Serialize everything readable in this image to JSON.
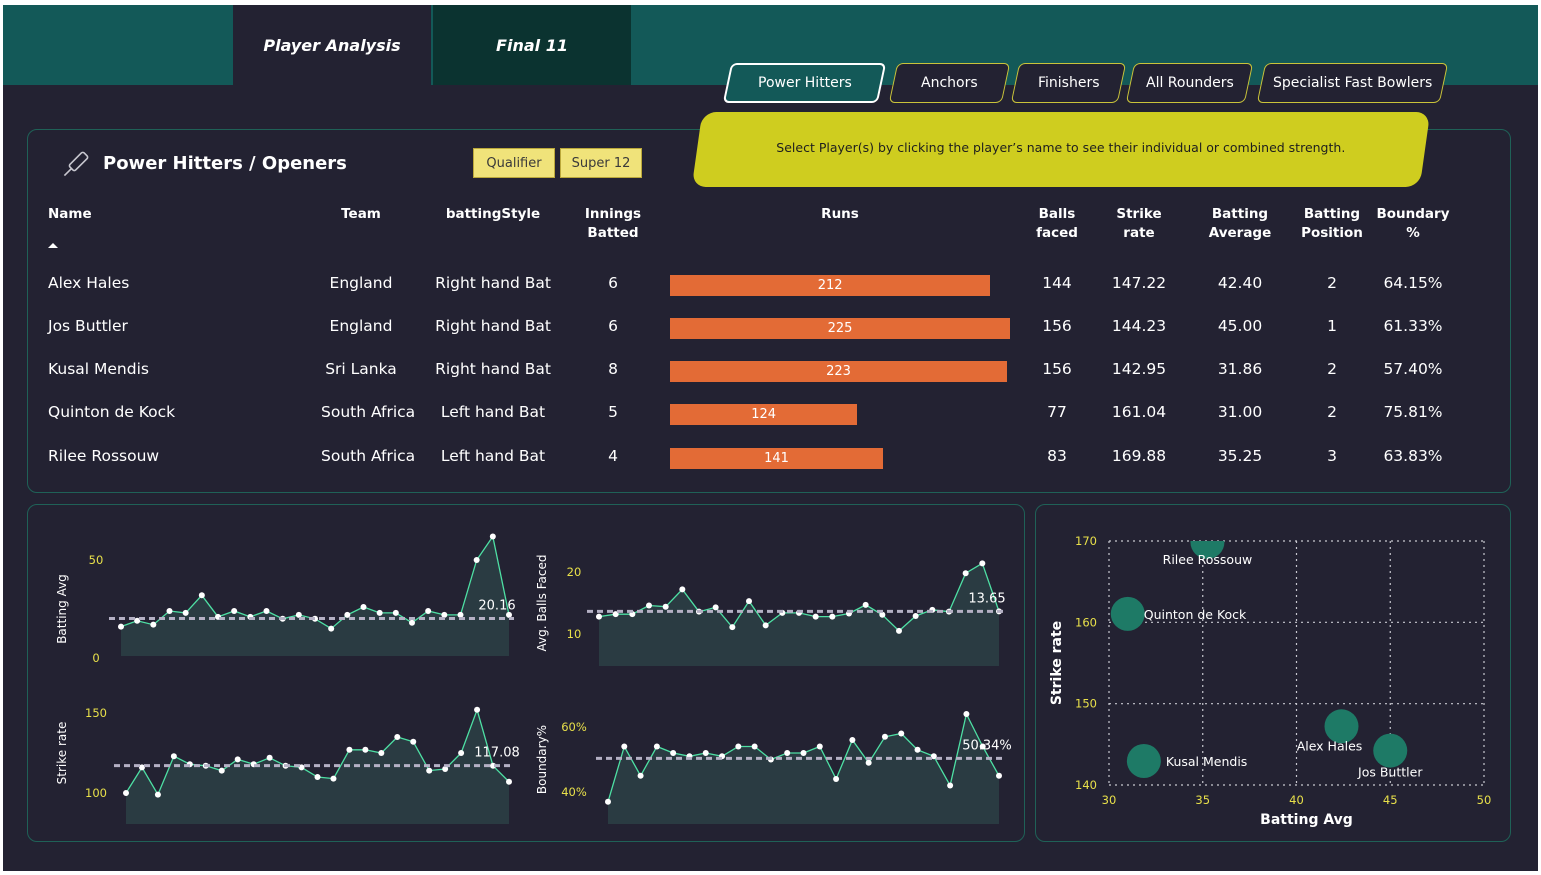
{
  "nav": {
    "tabs": [
      {
        "label": "Player Analysis",
        "active": true
      },
      {
        "label": "Final 11",
        "active": false
      }
    ]
  },
  "segments": [
    {
      "label": "Power Hitters",
      "active": true
    },
    {
      "label": "Anchors",
      "active": false
    },
    {
      "label": "Finishers",
      "active": false
    },
    {
      "label": "All Rounders",
      "active": false
    },
    {
      "label": "Specialist Fast Bowlers",
      "active": false
    }
  ],
  "banner": {
    "text": "Select Player(s) by clicking the player’s name to see their individual or combined strength."
  },
  "table": {
    "title": "Power Hitters / Openers",
    "icon": "cricket-bat-icon",
    "filters": [
      "Qualifier",
      "Super 12"
    ],
    "headers": {
      "name": "Name",
      "team": "Team",
      "style": "battingStyle",
      "innings": [
        "Innings",
        "Batted"
      ],
      "runs": "Runs",
      "balls": [
        "Balls",
        "faced"
      ],
      "sr": [
        "Strike",
        "rate"
      ],
      "avg": [
        "Batting",
        "Average"
      ],
      "pos": [
        "Batting",
        "Position"
      ],
      "boundary": "Boundary %"
    },
    "sort_icon": "sort-ascending-icon",
    "runs_max": 225,
    "rows": [
      {
        "name": "Alex Hales",
        "team": "England",
        "style": "Right hand Bat",
        "innings": "6",
        "runs": 212,
        "balls": "144",
        "sr": "147.22",
        "avg": "42.40",
        "pos": "2",
        "boundary": "64.15%"
      },
      {
        "name": "Jos Buttler",
        "team": "England",
        "style": "Right hand Bat",
        "innings": "6",
        "runs": 225,
        "balls": "156",
        "sr": "144.23",
        "avg": "45.00",
        "pos": "1",
        "boundary": "61.33%"
      },
      {
        "name": "Kusal Mendis",
        "team": "Sri Lanka",
        "style": "Right hand Bat",
        "innings": "8",
        "runs": 223,
        "balls": "156",
        "sr": "142.95",
        "avg": "31.86",
        "pos": "2",
        "boundary": "57.40%"
      },
      {
        "name": "Quinton de Kock",
        "team": "South Africa",
        "style": "Left hand Bat",
        "innings": "5",
        "runs": 124,
        "balls": "77",
        "sr": "161.04",
        "avg": "31.00",
        "pos": "2",
        "boundary": "75.81%"
      },
      {
        "name": "Rilee Rossouw",
        "team": "South Africa",
        "style": "Left hand Bat",
        "innings": "4",
        "runs": 141,
        "balls": "83",
        "sr": "169.88",
        "avg": "35.25",
        "pos": "3",
        "boundary": "63.83%"
      }
    ]
  },
  "colors": {
    "background": "#232232",
    "topbar": "#135958",
    "bar": "#e36b36",
    "banner": "#cfcd1f",
    "line": "#4ee0a4",
    "area": "#2a3b42",
    "bubble": "#1e7a66",
    "tick_yellow": "#e8e04a",
    "avg_line": "#b4b0c4"
  },
  "chart_data": [
    {
      "type": "line",
      "ylabel": "Batting Avg",
      "yticks": [
        "0",
        "50"
      ],
      "ylim": [
        0,
        50
      ],
      "values": [
        16,
        19,
        17,
        24,
        23,
        32,
        21,
        24,
        21,
        24,
        20,
        22,
        20,
        15,
        22,
        26,
        23,
        23,
        18,
        24,
        22,
        22,
        50,
        62,
        22
      ],
      "average": 20.16,
      "average_label": "20.16"
    },
    {
      "type": "line",
      "ylabel": "Avg. Balls Faced",
      "yticks": [
        "10",
        "20"
      ],
      "ylim": [
        10,
        20
      ],
      "values": [
        12.8,
        13.2,
        13.2,
        14.6,
        14.4,
        17.2,
        13.6,
        14.3,
        11.1,
        15.3,
        11.4,
        13.4,
        13.4,
        12.8,
        12.8,
        13.3,
        14.7,
        13.1,
        10.5,
        12.9,
        13.9,
        13.6,
        19.8,
        21.4,
        13.65
      ],
      "average": 13.65,
      "average_label": "13.65"
    },
    {
      "type": "line",
      "ylabel": "Strike rate",
      "yticks": [
        "100",
        "150"
      ],
      "ylim": [
        100,
        150
      ],
      "values": [
        100,
        116,
        99,
        123,
        118,
        117,
        114,
        121,
        118,
        122,
        117,
        116,
        110,
        109,
        127,
        127,
        125,
        135,
        132,
        114,
        115,
        125,
        152,
        117,
        107
      ],
      "average": 117.08,
      "average_label": "117.08"
    },
    {
      "type": "line",
      "ylabel": "Boundary%",
      "yticks": [
        "40%",
        "60%"
      ],
      "ylim": [
        40,
        60
      ],
      "values": [
        37,
        54,
        45,
        54,
        52,
        51,
        52,
        51,
        54,
        54,
        50,
        52,
        52,
        54,
        44,
        56,
        49,
        57,
        58,
        53,
        51,
        42,
        64,
        54,
        45
      ],
      "average": 50.34,
      "average_label": "50.34%"
    },
    {
      "type": "scatter",
      "xlabel": "Batting Avg",
      "ylabel": "Strike rate",
      "xlim": [
        30,
        50
      ],
      "ylim": [
        140,
        170
      ],
      "xticks": [
        "30",
        "35",
        "40",
        "45",
        "50"
      ],
      "yticks": [
        "140",
        "150",
        "160",
        "170"
      ],
      "points": [
        {
          "label": "Rilee Rossouw",
          "x": 35.25,
          "y": 169.88
        },
        {
          "label": "Quinton de Kock",
          "x": 31.0,
          "y": 161.04
        },
        {
          "label": "Alex Hales",
          "x": 42.4,
          "y": 147.22
        },
        {
          "label": "Jos Buttler",
          "x": 45.0,
          "y": 144.23
        },
        {
          "label": "Kusal Mendis",
          "x": 31.86,
          "y": 142.95
        }
      ]
    }
  ]
}
